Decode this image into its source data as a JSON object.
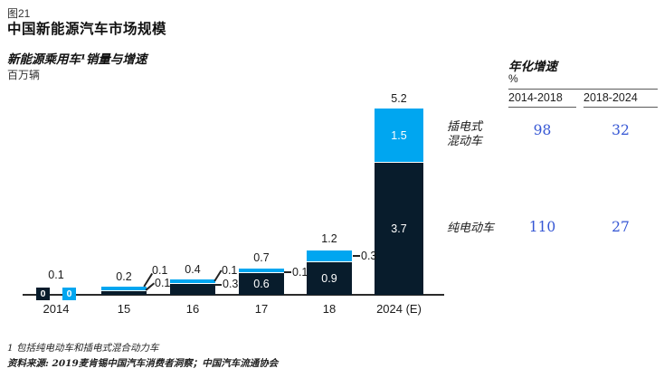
{
  "header": {
    "figure_label": "图21",
    "title": "中国新能源汽车市场规模",
    "subtitle": "新能源乘用车¹销量与增速",
    "unit_label": "百万辆"
  },
  "chart_data": {
    "type": "bar",
    "stacked": true,
    "title": "新能源乘用车销量与增速",
    "ylabel": "百万辆",
    "ylim": [
      0,
      5.5
    ],
    "grid": false,
    "categories": [
      "2014",
      "15",
      "16",
      "17",
      "18",
      "2024 (E)"
    ],
    "series": [
      {
        "name": "纯电动车",
        "color": "#081c2c",
        "values": [
          0,
          0.1,
          0.3,
          0.6,
          0.9,
          3.7
        ]
      },
      {
        "name": "插电式混动车",
        "color": "#00a6f0",
        "values": [
          0,
          0.1,
          0.1,
          0.1,
          0.3,
          1.5
        ]
      }
    ],
    "totals": [
      0.1,
      0.2,
      0.4,
      0.7,
      1.2,
      5.2
    ]
  },
  "series_labels": {
    "phev_line1": "插电式",
    "phev_line2": "混动车",
    "bev": "纯电动车"
  },
  "growth_table": {
    "title": "年化增速",
    "unit": "%",
    "columns": [
      "2014-2018",
      "2018-2024"
    ],
    "rows": [
      {
        "series": "插电式混动车",
        "values": [
          98,
          32
        ]
      },
      {
        "series": "纯电动车",
        "values": [
          110,
          27
        ]
      }
    ],
    "value_color": "#3556d4"
  },
  "footnotes": {
    "note": "1 包括纯电动车和插电式混合动力车",
    "source": "资料来源: 2019麦肯锡中国汽车消费者洞察；中国汽车流通协会"
  }
}
